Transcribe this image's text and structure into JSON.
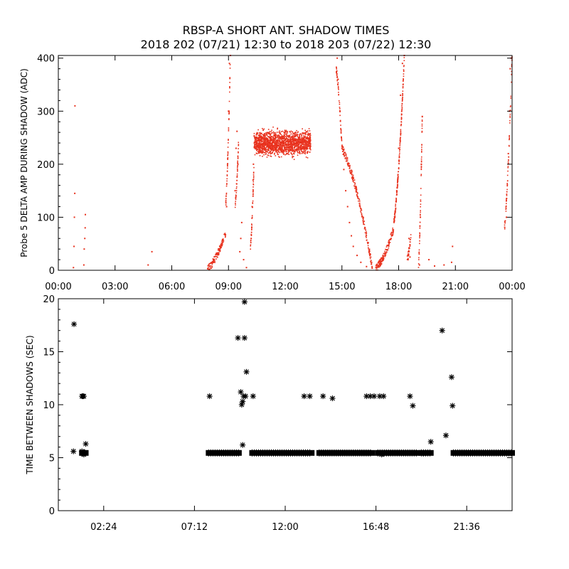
{
  "title_line1": "RBSP-A SHORT ANT. SHADOW TIMES",
  "title_line2": "2018 202 (07/21) 12:30 to 2018 203 (07/22) 12:30",
  "colors": {
    "points": "#e8321e",
    "axes": "#000000",
    "markers": "#000000"
  },
  "chart_data": [
    {
      "type": "scatter",
      "ylabel": "Probe 5 DELTA AMP DURING SHADOW (ADC)",
      "xlabel": "",
      "xlim": [
        0,
        24
      ],
      "ylim": [
        0,
        405
      ],
      "x_unit": "hours",
      "x_ticks": [
        0,
        3,
        6,
        9,
        12,
        15,
        18,
        21,
        24
      ],
      "x_tick_labels": [
        "00:00",
        "03:00",
        "06:00",
        "09:00",
        "12:00",
        "15:00",
        "18:00",
        "21:00",
        "00:00"
      ],
      "y_ticks": [
        0,
        100,
        200,
        300,
        400
      ],
      "y_tick_labels": [
        "0",
        "100",
        "200",
        "300",
        "400"
      ],
      "grid": false,
      "series": [
        {
          "marker": "dot",
          "color": "#e8321e",
          "points": [
            [
              0.8,
              5
            ],
            [
              0.83,
              45
            ],
            [
              0.85,
              100
            ],
            [
              0.87,
              145
            ],
            [
              0.88,
              310
            ],
            [
              1.35,
              10
            ],
            [
              1.37,
              40
            ],
            [
              1.4,
              60
            ],
            [
              1.42,
              80
            ],
            [
              1.43,
              105
            ],
            [
              4.75,
              10
            ],
            [
              4.95,
              35
            ],
            [
              7.9,
              3
            ],
            [
              8.0,
              8
            ],
            [
              8.1,
              14
            ],
            [
              8.2,
              20
            ],
            [
              8.3,
              26
            ],
            [
              8.4,
              32
            ],
            [
              8.5,
              40
            ],
            [
              8.6,
              48
            ],
            [
              8.7,
              58
            ],
            [
              8.8,
              68
            ],
            [
              8.9,
              120
            ],
            [
              8.95,
              200
            ],
            [
              9.0,
              300
            ],
            [
              9.05,
              390
            ],
            [
              9.1,
              405
            ],
            [
              9.35,
              150
            ],
            [
              9.4,
              230
            ],
            [
              9.45,
              262
            ],
            [
              9.5,
              200
            ],
            [
              9.6,
              35
            ],
            [
              9.65,
              60
            ],
            [
              9.7,
              90
            ],
            [
              9.8,
              20
            ],
            [
              9.95,
              5
            ],
            [
              10.2,
              60
            ],
            [
              10.25,
              120
            ],
            [
              10.3,
              170
            ],
            [
              10.32,
              200
            ],
            [
              10.5,
              240
            ],
            [
              10.7,
              225
            ],
            [
              10.9,
              255
            ],
            [
              11.1,
              235
            ],
            [
              11.3,
              245
            ],
            [
              11.5,
              230
            ],
            [
              11.7,
              250
            ],
            [
              11.9,
              238
            ],
            [
              12.1,
              244
            ],
            [
              12.3,
              232
            ],
            [
              12.5,
              252
            ],
            [
              12.7,
              236
            ],
            [
              12.9,
              246
            ],
            [
              13.1,
              240
            ],
            [
              13.3,
              248
            ],
            [
              14.75,
              400
            ],
            [
              14.8,
              360
            ],
            [
              15.0,
              230
            ],
            [
              15.1,
              190
            ],
            [
              15.2,
              150
            ],
            [
              15.3,
              120
            ],
            [
              15.4,
              90
            ],
            [
              15.5,
              65
            ],
            [
              15.6,
              45
            ],
            [
              15.8,
              28
            ],
            [
              16.0,
              15
            ],
            [
              16.3,
              7
            ],
            [
              16.6,
              4
            ],
            [
              16.8,
              5
            ],
            [
              17.0,
              12
            ],
            [
              17.2,
              22
            ],
            [
              17.4,
              38
            ],
            [
              17.6,
              60
            ],
            [
              17.7,
              75
            ],
            [
              17.8,
              100
            ],
            [
              17.9,
              150
            ],
            [
              18.0,
              230
            ],
            [
              18.1,
              330
            ],
            [
              18.2,
              390
            ],
            [
              18.3,
              405
            ],
            [
              18.5,
              20
            ],
            [
              18.55,
              60
            ],
            [
              18.6,
              25
            ],
            [
              19.1,
              10
            ],
            [
              19.15,
              100
            ],
            [
              19.2,
              200
            ],
            [
              19.25,
              290
            ],
            [
              19.6,
              20
            ],
            [
              19.9,
              8
            ],
            [
              20.4,
              10
            ],
            [
              20.8,
              15
            ],
            [
              20.85,
              45
            ],
            [
              23.7,
              100
            ],
            [
              23.8,
              220
            ],
            [
              23.85,
              300
            ],
            [
              23.9,
              380
            ],
            [
              23.95,
              400
            ]
          ]
        }
      ]
    },
    {
      "type": "scatter",
      "ylabel": "TIME BETWEEN SHADOWS (SEC)",
      "xlabel": "",
      "xlim": [
        0,
        24
      ],
      "ylim": [
        0,
        20
      ],
      "x_unit": "hours",
      "x_ticks": [
        2.4,
        7.2,
        12.0,
        16.8,
        21.6
      ],
      "x_tick_labels": [
        "02:24",
        "07:12",
        "12:00",
        "16:48",
        "21:36"
      ],
      "y_ticks": [
        0,
        5,
        10,
        15,
        20
      ],
      "y_tick_labels": [
        "0",
        "5",
        "10",
        "15",
        "20"
      ],
      "grid": false,
      "series": [
        {
          "marker": "asterisk",
          "color": "#000000",
          "points": [
            [
              0.83,
              17.6
            ],
            [
              0.8,
              5.6
            ],
            [
              1.25,
              10.8
            ],
            [
              1.3,
              10.8
            ],
            [
              1.35,
              10.8
            ],
            [
              1.25,
              5.6
            ],
            [
              1.3,
              5.4
            ],
            [
              1.35,
              5.3
            ],
            [
              1.4,
              5.5
            ],
            [
              1.45,
              6.3
            ],
            [
              8.0,
              10.8
            ],
            [
              9.5,
              16.3
            ],
            [
              9.65,
              11.2
            ],
            [
              9.7,
              10.0
            ],
            [
              9.75,
              10.3
            ],
            [
              9.8,
              10.8
            ],
            [
              9.85,
              16.3
            ],
            [
              9.9,
              10.8
            ],
            [
              9.95,
              13.1
            ],
            [
              9.75,
              6.2
            ],
            [
              9.85,
              19.7
            ],
            [
              10.3,
              10.8
            ],
            [
              13.0,
              10.8
            ],
            [
              13.3,
              10.8
            ],
            [
              14.0,
              10.8
            ],
            [
              14.5,
              10.6
            ],
            [
              16.3,
              10.8
            ],
            [
              16.5,
              10.8
            ],
            [
              16.7,
              10.8
            ],
            [
              17.0,
              10.8
            ],
            [
              17.2,
              10.8
            ],
            [
              18.6,
              10.8
            ],
            [
              18.75,
              9.9
            ],
            [
              19.7,
              6.5
            ],
            [
              20.3,
              17.0
            ],
            [
              20.5,
              7.1
            ],
            [
              20.8,
              12.6
            ],
            [
              20.85,
              9.9
            ],
            [
              17.1,
              5.3
            ],
            [
              19.3,
              5.4
            ]
          ],
          "runs": [
            {
              "x_start": 1.25,
              "x_end": 1.45,
              "value": 5.45
            },
            {
              "x_start": 7.95,
              "x_end": 9.55,
              "value": 5.45
            },
            {
              "x_start": 10.25,
              "x_end": 13.4,
              "value": 5.45
            },
            {
              "x_start": 13.8,
              "x_end": 16.6,
              "value": 5.45
            },
            {
              "x_start": 16.9,
              "x_end": 19.0,
              "value": 5.45
            },
            {
              "x_start": 19.2,
              "x_end": 19.7,
              "value": 5.45
            },
            {
              "x_start": 20.9,
              "x_end": 24.0,
              "value": 5.45
            }
          ]
        }
      ]
    }
  ]
}
